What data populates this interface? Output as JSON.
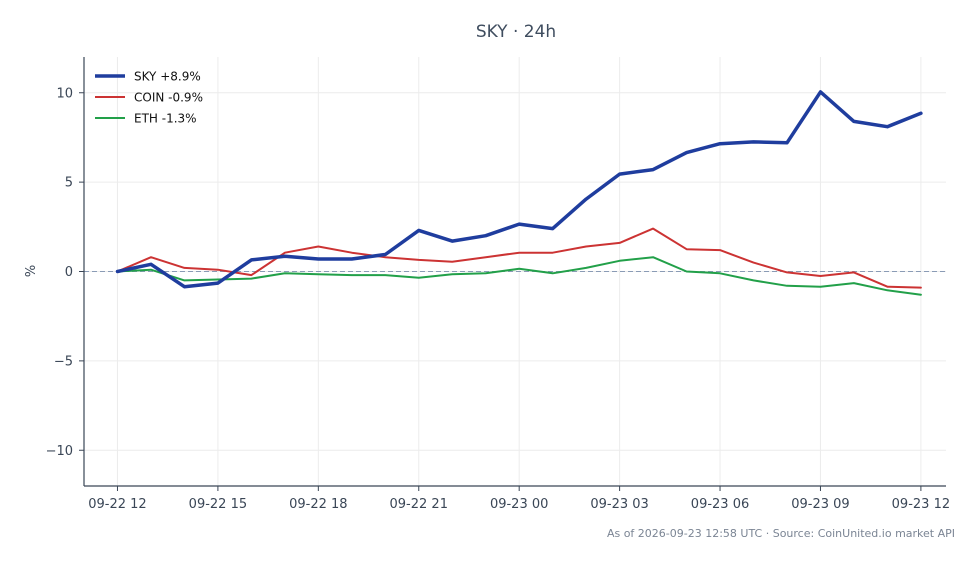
{
  "chart_data": {
    "type": "line",
    "title": "SKY · 24h",
    "ylabel": "%",
    "xlabel": "",
    "ylim": [
      -12,
      12
    ],
    "yticks": [
      -10,
      -5,
      0,
      5,
      10
    ],
    "ytick_labels": [
      "−10",
      "−5",
      "0",
      "5",
      "10"
    ],
    "xlim": [
      "2026-09-22 11:00",
      "2026-09-23 12:45"
    ],
    "xticks": [
      "2026-09-22 12:00",
      "2026-09-22 15:00",
      "2026-09-22 18:00",
      "2026-09-22 21:00",
      "2026-09-23 00:00",
      "2026-09-23 03:00",
      "2026-09-23 06:00",
      "2026-09-23 09:00",
      "2026-09-23 12:00"
    ],
    "xtick_labels": [
      "09-22 12",
      "09-22 15",
      "09-22 18",
      "09-22 21",
      "09-23 00",
      "09-23 03",
      "09-23 06",
      "09-23 09",
      "09-23 12"
    ],
    "x": [
      "2026-09-22 12:00",
      "2026-09-22 13:00",
      "2026-09-22 14:00",
      "2026-09-22 15:00",
      "2026-09-22 16:00",
      "2026-09-22 17:00",
      "2026-09-22 18:00",
      "2026-09-22 19:00",
      "2026-09-22 20:00",
      "2026-09-22 21:00",
      "2026-09-22 22:00",
      "2026-09-22 23:00",
      "2026-09-23 00:00",
      "2026-09-23 01:00",
      "2026-09-23 02:00",
      "2026-09-23 03:00",
      "2026-09-23 04:00",
      "2026-09-23 05:00",
      "2026-09-23 06:00",
      "2026-09-23 07:00",
      "2026-09-23 08:00",
      "2026-09-23 09:00",
      "2026-09-23 10:00",
      "2026-09-23 11:00",
      "2026-09-23 12:00"
    ],
    "series": [
      {
        "name": "SKY +8.9%",
        "color": "#1f3d9e",
        "width": 3.5,
        "values": [
          0.0,
          0.4,
          -0.85,
          -0.65,
          0.65,
          0.85,
          0.7,
          0.7,
          0.95,
          2.3,
          1.7,
          2.0,
          2.65,
          2.4,
          4.05,
          5.45,
          5.7,
          6.65,
          7.15,
          7.25,
          7.2,
          10.05,
          8.4,
          8.1,
          8.85
        ]
      },
      {
        "name": "COIN -0.9%",
        "color": "#cc3333",
        "width": 2,
        "values": [
          0.0,
          0.8,
          0.2,
          0.1,
          -0.2,
          1.05,
          1.4,
          1.05,
          0.8,
          0.65,
          0.55,
          0.8,
          1.05,
          1.05,
          1.4,
          1.6,
          2.4,
          1.25,
          1.2,
          0.5,
          -0.05,
          -0.25,
          -0.05,
          -0.85,
          -0.9
        ]
      },
      {
        "name": "ETH -1.3%",
        "color": "#22a049",
        "width": 2,
        "values": [
          0.0,
          0.1,
          -0.5,
          -0.45,
          -0.4,
          -0.1,
          -0.15,
          -0.2,
          -0.2,
          -0.35,
          -0.15,
          -0.1,
          0.15,
          -0.1,
          0.2,
          0.6,
          0.8,
          0.0,
          -0.1,
          -0.5,
          -0.8,
          -0.85,
          -0.65,
          -1.05,
          -1.3
        ]
      }
    ],
    "zero_line": {
      "value": 0,
      "style": "dashed",
      "color": "#8a9bb5"
    },
    "grid": true,
    "legend_position": "top-left"
  },
  "footer_text": "As of 2026-09-23 12:58 UTC · Source: CoinUnited.io market API"
}
